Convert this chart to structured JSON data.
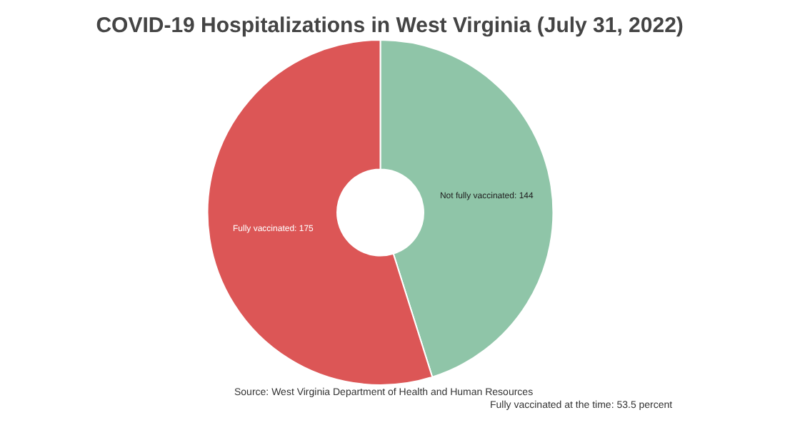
{
  "chart_data": {
    "type": "donut",
    "title": "COVID-19 Hospitalizations in West Virginia (July 31, 2022)",
    "categories": [
      "Not fully vaccinated: 144",
      "Fully vaccinated: 175"
    ],
    "values": [
      144,
      175
    ],
    "colors": [
      "#8fc5a8",
      "#dc5656"
    ],
    "legend": false,
    "annotations": [
      "Source: West Virginia Department of Health and Human Resources",
      "Fully vaccinated at the time: 53.5 percent"
    ]
  }
}
